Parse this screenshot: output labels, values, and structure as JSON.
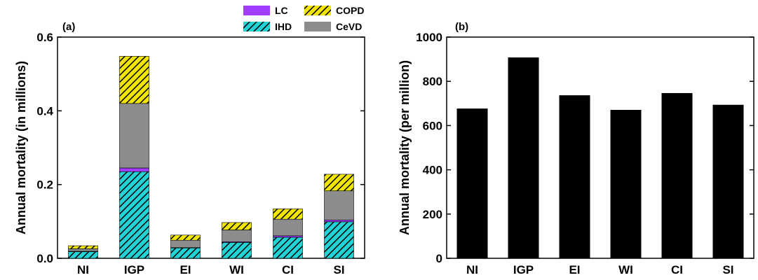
{
  "chart_data": [
    {
      "type": "bar",
      "stacked": true,
      "panel_label": "(a)",
      "ylabel": "Annual mortality (in millions)",
      "xlabel": "",
      "categories": [
        "NI",
        "IGP",
        "EI",
        "WI",
        "CI",
        "SI"
      ],
      "ylim": [
        0,
        0.6
      ],
      "yticks": [
        0.0,
        0.2,
        0.4,
        0.6
      ],
      "ytick_labels": [
        "0.0",
        "0.2",
        "0.4",
        "0.6"
      ],
      "legend_position": "top-right",
      "series": [
        {
          "name": "IHD",
          "color": "#22d3d6",
          "pattern": "hatched",
          "values": [
            0.018,
            0.235,
            0.028,
            0.043,
            0.057,
            0.099
          ]
        },
        {
          "name": "LC",
          "color": "#a23cff",
          "pattern": "solid",
          "values": [
            0.001,
            0.01,
            0.001,
            0.002,
            0.004,
            0.005
          ]
        },
        {
          "name": "CeVD",
          "color": "#8c8c8c",
          "pattern": "solid",
          "values": [
            0.007,
            0.175,
            0.02,
            0.032,
            0.045,
            0.079
          ]
        },
        {
          "name": "COPD",
          "color": "#f2e600",
          "pattern": "hatched",
          "values": [
            0.008,
            0.128,
            0.014,
            0.02,
            0.028,
            0.045
          ]
        }
      ],
      "legend_order": [
        "LC",
        "COPD",
        "IHD",
        "CeVD"
      ]
    },
    {
      "type": "bar",
      "panel_label": "(b)",
      "ylabel": "Annual mortality (per million)",
      "xlabel": "",
      "categories": [
        "NI",
        "IGP",
        "EI",
        "WI",
        "CI",
        "SI"
      ],
      "values": [
        677,
        908,
        737,
        671,
        747,
        694
      ],
      "color": "#000000",
      "ylim": [
        0,
        1000
      ],
      "yticks": [
        0,
        200,
        400,
        600,
        800,
        1000
      ],
      "ytick_labels": [
        "0",
        "200",
        "400",
        "600",
        "800",
        "1000"
      ]
    }
  ]
}
